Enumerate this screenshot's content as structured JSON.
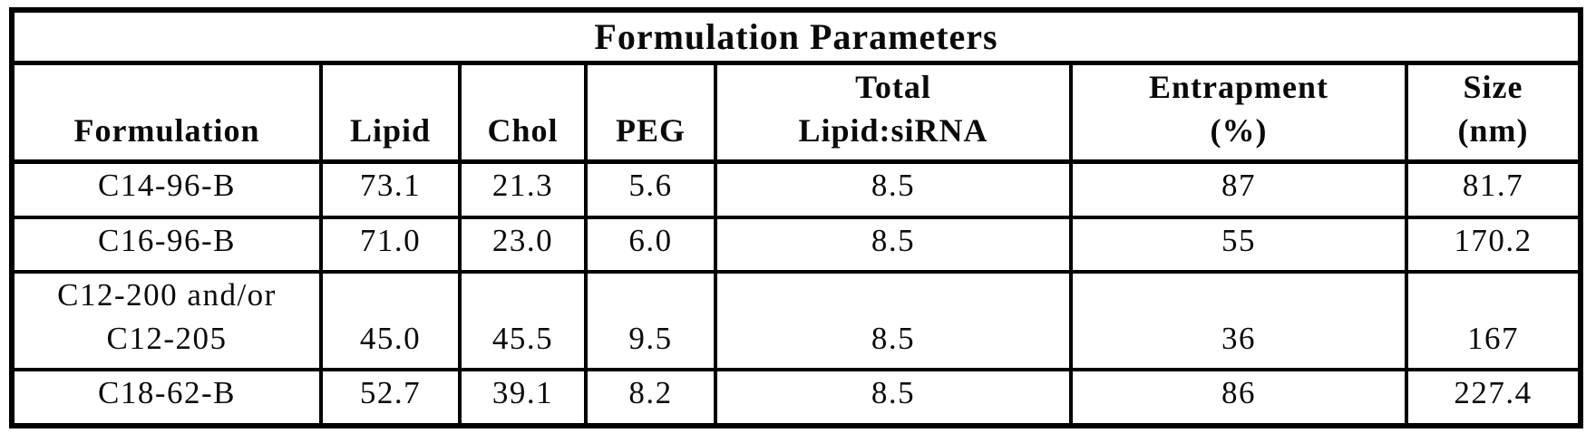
{
  "page": {
    "background_color": "#ffffff",
    "text_color": "#0a0a0a",
    "border_color": "#000000"
  },
  "table": {
    "title": "Formulation Parameters",
    "columns": [
      {
        "id": "formulation",
        "line1": "Formulation"
      },
      {
        "id": "lipid",
        "line1": "Lipid"
      },
      {
        "id": "chol",
        "line1": "Chol"
      },
      {
        "id": "peg",
        "line1": "PEG"
      },
      {
        "id": "total-lipid-sirna",
        "line1": "Total",
        "line2": "Lipid:siRNA"
      },
      {
        "id": "entrapment",
        "line1": "Entrapment",
        "line2": "(%)"
      },
      {
        "id": "size",
        "line1": "Size",
        "line2": "(nm)"
      }
    ],
    "rows": [
      {
        "name_line1": "C14-96-B",
        "lipid": "73.1",
        "chol": "21.3",
        "peg": "5.6",
        "total_lipid_sirna": "8.5",
        "entrapment_pct": "87",
        "size_nm": "81.7"
      },
      {
        "name_line1": "C16-96-B",
        "lipid": "71.0",
        "chol": "23.0",
        "peg": "6.0",
        "total_lipid_sirna": "8.5",
        "entrapment_pct": "55",
        "size_nm": "170.2"
      },
      {
        "name_line1": "C12-200 and/or",
        "name_line2": "C12-205",
        "lipid": "45.0",
        "chol": "45.5",
        "peg": "9.5",
        "total_lipid_sirna": "8.5",
        "entrapment_pct": "36",
        "size_nm": "167"
      },
      {
        "name_line1": "C18-62-B",
        "lipid": "52.7",
        "chol": "39.1",
        "peg": "8.2",
        "total_lipid_sirna": "8.5",
        "entrapment_pct": "86",
        "size_nm": "227.4"
      }
    ]
  }
}
